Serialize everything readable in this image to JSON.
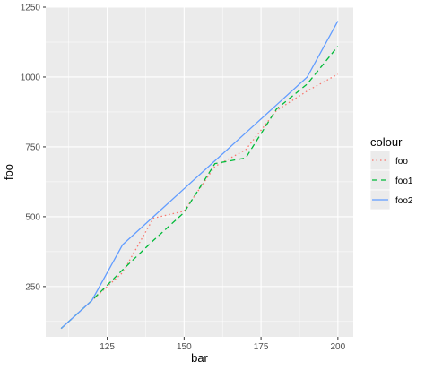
{
  "chart_data": {
    "type": "line",
    "title": "",
    "xlabel": "bar",
    "ylabel": "foo",
    "xlim": [
      105,
      205
    ],
    "ylim": [
      70,
      1250
    ],
    "x_ticks": [
      125,
      150,
      175,
      200
    ],
    "y_ticks": [
      250,
      500,
      750,
      1000,
      1250
    ],
    "x_tick_labels": [
      "125",
      "150",
      "175",
      "200"
    ],
    "y_tick_labels": [
      "250",
      "500",
      "750",
      "1000",
      "1250"
    ],
    "grid": true,
    "legend": {
      "title": "colour",
      "placement": "right",
      "entries": [
        "foo",
        "foo1",
        "foo2"
      ]
    },
    "colors": {
      "panel_background": "#ebebeb",
      "grid_line": "#ffffff",
      "axis_text": "#4d4d4d",
      "legend_key_background": "#ebebeb"
    },
    "series": [
      {
        "name": "foo",
        "color": "#F8766D",
        "linestyle": "dotted",
        "x": [
          110,
          120,
          130,
          140,
          150,
          160,
          170,
          180,
          190,
          200
        ],
        "y": [
          100,
          200,
          300,
          495,
          520,
          680,
          740,
          880,
          950,
          1010
        ]
      },
      {
        "name": "foo1",
        "color": "#00BA38",
        "linestyle": "dashed",
        "x": [
          110,
          120,
          130,
          140,
          150,
          160,
          170,
          180,
          190,
          200
        ],
        "y": [
          100,
          200,
          310,
          415,
          515,
          690,
          710,
          885,
          975,
          1110
        ]
      },
      {
        "name": "foo2",
        "color": "#619CFF",
        "linestyle": "solid",
        "x": [
          110,
          120,
          130,
          140,
          150,
          160,
          170,
          180,
          190,
          200
        ],
        "y": [
          100,
          200,
          400,
          500,
          600,
          700,
          800,
          900,
          1000,
          1200
        ]
      }
    ]
  }
}
